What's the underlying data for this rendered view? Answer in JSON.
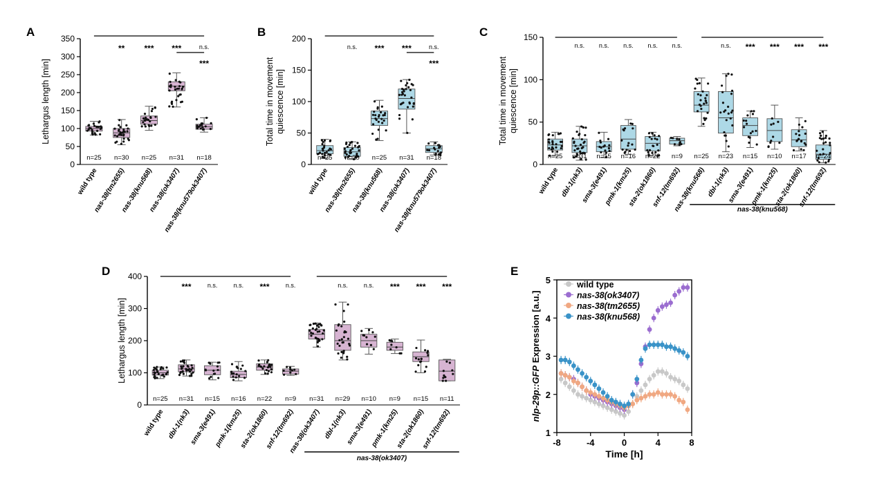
{
  "chart_data": [
    {
      "panel": "A",
      "type": "box",
      "ylabel": "Lethargus length [min]",
      "ylim": [
        0,
        350
      ],
      "yticks": [
        0,
        50,
        100,
        150,
        200,
        250,
        300,
        350
      ],
      "color": "#d7b4d2",
      "categories": [
        "wild type",
        "nas-38(tm2655)",
        "nas-38(knu568)",
        "nas-38(ok3407)",
        "nas-38(knu579ok3407)"
      ],
      "n_labels": [
        "n=25",
        "n=30",
        "n=25",
        "n=31",
        "n=18"
      ],
      "boxes": [
        {
          "min": 82,
          "q1": 93,
          "median": 100,
          "q3": 106,
          "max": 120
        },
        {
          "min": 55,
          "q1": 75,
          "median": 88,
          "q3": 100,
          "max": 125
        },
        {
          "min": 95,
          "q1": 112,
          "median": 122,
          "q3": 135,
          "max": 162
        },
        {
          "min": 160,
          "q1": 205,
          "median": 218,
          "q3": 230,
          "max": 255
        },
        {
          "min": 90,
          "q1": 98,
          "median": 105,
          "q3": 112,
          "max": 130
        }
      ],
      "significance": [
        "",
        "**",
        "***",
        "***",
        "n.s."
      ],
      "extra_comparison": {
        "between": [
          3,
          4
        ],
        "label": "***"
      }
    },
    {
      "panel": "B",
      "type": "box",
      "ylabel": "Total time in movement quiescence [min]",
      "ylim": [
        0,
        200
      ],
      "yticks": [
        0,
        50,
        100,
        150,
        200
      ],
      "color": "#add8e6",
      "categories": [
        "wild type",
        "nas-38(tm2655)",
        "nas-38(knu568)",
        "nas-38(ok3407)",
        "nas-38(knu579ok3407)"
      ],
      "n_labels": [
        "n=25",
        "n=30",
        "n=25",
        "n=31",
        "n=18"
      ],
      "boxes": [
        {
          "min": 10,
          "q1": 17,
          "median": 22,
          "q3": 30,
          "max": 40
        },
        {
          "min": 8,
          "q1": 13,
          "median": 20,
          "q3": 27,
          "max": 36
        },
        {
          "min": 38,
          "q1": 62,
          "median": 73,
          "q3": 85,
          "max": 102
        },
        {
          "min": 50,
          "q1": 88,
          "median": 105,
          "q3": 120,
          "max": 135
        },
        {
          "min": 15,
          "q1": 19,
          "median": 25,
          "q3": 30,
          "max": 36
        }
      ],
      "significance": [
        "",
        "n.s.",
        "***",
        "***",
        "n.s."
      ],
      "extra_comparison": {
        "between": [
          3,
          4
        ],
        "label": "***"
      }
    },
    {
      "panel": "C",
      "type": "box",
      "ylabel": "Total time in movement quiescence [min]",
      "ylim": [
        0,
        150
      ],
      "yticks": [
        0,
        50,
        100,
        150
      ],
      "color": "#add8e6",
      "categories": [
        "wild type",
        "dbl-1(nk3)",
        "sma-3(e491)",
        "pmk-1(km25)",
        "sta-2(ok1860)",
        "snf-12(tm692)",
        "nas-38(knu568)",
        "dbl-1(nk3)",
        "sma-3(e491)",
        "pmk-1(km25)",
        "sta-2(ok1860)",
        "snf-12(tm692)"
      ],
      "n_labels": [
        "n=25",
        "n=31",
        "n=15",
        "n=16",
        "n=22",
        "n=9",
        "n=25",
        "n=23",
        "n=15",
        "n=10",
        "n=17",
        "n=24"
      ],
      "boxes": [
        {
          "min": 10,
          "q1": 17,
          "median": 23,
          "q3": 30,
          "max": 38
        },
        {
          "min": 5,
          "q1": 14,
          "median": 22,
          "q3": 30,
          "max": 45
        },
        {
          "min": 8,
          "q1": 15,
          "median": 21,
          "q3": 27,
          "max": 38
        },
        {
          "min": 12,
          "q1": 18,
          "median": 30,
          "q3": 46,
          "max": 53
        },
        {
          "min": 10,
          "q1": 16,
          "median": 25,
          "q3": 33,
          "max": 38
        },
        {
          "min": 22,
          "q1": 24,
          "median": 28,
          "q3": 31,
          "max": 33
        },
        {
          "min": 45,
          "q1": 62,
          "median": 70,
          "q3": 86,
          "max": 102
        },
        {
          "min": 15,
          "q1": 37,
          "median": 55,
          "q3": 86,
          "max": 107
        },
        {
          "min": 20,
          "q1": 34,
          "median": 46,
          "q3": 55,
          "max": 63
        },
        {
          "min": 18,
          "q1": 27,
          "median": 40,
          "q3": 54,
          "max": 70
        },
        {
          "min": 16,
          "q1": 21,
          "median": 29,
          "q3": 41,
          "max": 55
        },
        {
          "min": 2,
          "q1": 6,
          "median": 12,
          "q3": 23,
          "max": 40
        }
      ],
      "significance": [
        "",
        "n.s.",
        "n.s.",
        "n.s.",
        "n.s.",
        "n.s.",
        "",
        "n.s.",
        "***",
        "***",
        "***",
        "***"
      ],
      "group_label": "nas-38(knu568)"
    },
    {
      "panel": "D",
      "type": "box",
      "ylabel": "Lethargus length [min]",
      "ylim": [
        0,
        400
      ],
      "yticks": [
        0,
        100,
        200,
        300,
        400
      ],
      "color": "#d7b4d2",
      "categories": [
        "wild type",
        "dbl-1(nk3)",
        "sma-3(e491)",
        "pmk-1(km25)",
        "sta-2(ok1860)",
        "snf-12(tm692)",
        "nas-38(ok3407)",
        "dbl-1(nk3)",
        "sma-3(e491)",
        "pmk-1(km25)",
        "sta-2(ok1860)",
        "snf-12(tm692)"
      ],
      "n_labels": [
        "n=25",
        "n=31",
        "n=15",
        "n=16",
        "n=22",
        "n=9",
        "n=31",
        "n=29",
        "n=10",
        "n=9",
        "n=15",
        "n=11"
      ],
      "boxes": [
        {
          "min": 82,
          "q1": 93,
          "median": 100,
          "q3": 108,
          "max": 118
        },
        {
          "min": 90,
          "q1": 103,
          "median": 112,
          "q3": 125,
          "max": 140
        },
        {
          "min": 78,
          "q1": 94,
          "median": 108,
          "q3": 122,
          "max": 133
        },
        {
          "min": 75,
          "q1": 85,
          "median": 95,
          "q3": 105,
          "max": 135
        },
        {
          "min": 95,
          "q1": 108,
          "median": 118,
          "q3": 128,
          "max": 140
        },
        {
          "min": 92,
          "q1": 96,
          "median": 105,
          "q3": 112,
          "max": 120
        },
        {
          "min": 180,
          "q1": 205,
          "median": 220,
          "q3": 235,
          "max": 255
        },
        {
          "min": 140,
          "q1": 170,
          "median": 200,
          "q3": 250,
          "max": 320
        },
        {
          "min": 158,
          "q1": 180,
          "median": 200,
          "q3": 220,
          "max": 238
        },
        {
          "min": 160,
          "q1": 170,
          "median": 180,
          "q3": 195,
          "max": 205
        },
        {
          "min": 100,
          "q1": 135,
          "median": 150,
          "q3": 165,
          "max": 202
        },
        {
          "min": 75,
          "q1": 75,
          "median": 105,
          "q3": 140,
          "max": 142
        }
      ],
      "significance": [
        "",
        "***",
        "n.s.",
        "n.s.",
        "***",
        "n.s.",
        "",
        "n.s.",
        "n.s.",
        "***",
        "***",
        "***"
      ],
      "group_label": "nas-38(ok3407)"
    },
    {
      "panel": "E",
      "type": "line",
      "xlabel": "Time [h]",
      "ylabel_italic": "nlp-29p::GFP",
      "ylabel_rest": " Expression [a.u.]",
      "xlim": [
        -8,
        8
      ],
      "ylim": [
        1,
        5
      ],
      "xticks": [
        -8,
        -4,
        0,
        4,
        8
      ],
      "yticks": [
        1,
        2,
        3,
        4,
        5
      ],
      "x": [
        -7.5,
        -7,
        -6.5,
        -6,
        -5.5,
        -5,
        -4.5,
        -4,
        -3.5,
        -3,
        -2.5,
        -2,
        -1.5,
        -1,
        -0.5,
        0,
        0.5,
        1,
        1.5,
        2,
        2.5,
        3,
        3.5,
        4,
        4.5,
        5,
        5.5,
        6,
        6.5,
        7,
        7.5
      ],
      "series": [
        {
          "name": "wild type",
          "color": "#c8c8c8",
          "values": [
            2.4,
            2.3,
            2.2,
            2.1,
            2.0,
            1.95,
            1.9,
            1.85,
            1.8,
            1.75,
            1.7,
            1.65,
            1.6,
            1.55,
            1.5,
            1.45,
            1.55,
            1.75,
            1.95,
            2.1,
            2.25,
            2.4,
            2.5,
            2.6,
            2.6,
            2.55,
            2.45,
            2.4,
            2.35,
            2.25,
            2.15
          ]
        },
        {
          "name": "nas-38(ok3407)",
          "color": "#9b6dd0",
          "values": [
            2.55,
            2.5,
            2.45,
            2.4,
            2.3,
            2.2,
            2.1,
            2.0,
            1.95,
            1.9,
            1.85,
            1.8,
            1.75,
            1.7,
            1.65,
            1.6,
            1.7,
            2.0,
            2.3,
            2.8,
            3.25,
            3.7,
            4.0,
            4.2,
            4.3,
            4.35,
            4.4,
            4.6,
            4.7,
            4.8,
            4.8
          ]
        },
        {
          "name": "nas-38(tm2655)",
          "color": "#f0a882",
          "values": [
            2.55,
            2.5,
            2.45,
            2.35,
            2.3,
            2.2,
            2.1,
            2.05,
            2.0,
            1.95,
            1.9,
            1.85,
            1.8,
            1.75,
            1.7,
            1.65,
            1.7,
            1.75,
            1.85,
            1.9,
            1.95,
            2.0,
            2.0,
            2.05,
            2.0,
            2.0,
            2.0,
            1.95,
            1.85,
            1.8,
            1.6
          ]
        },
        {
          "name": "nas-38(knu568)",
          "color": "#3a93c8",
          "values": [
            2.9,
            2.9,
            2.85,
            2.75,
            2.65,
            2.55,
            2.45,
            2.35,
            2.25,
            2.15,
            2.05,
            1.95,
            1.85,
            1.8,
            1.75,
            1.7,
            1.75,
            2.0,
            2.4,
            2.9,
            3.2,
            3.3,
            3.3,
            3.3,
            3.3,
            3.25,
            3.25,
            3.2,
            3.15,
            3.1,
            3.0
          ]
        }
      ]
    }
  ]
}
